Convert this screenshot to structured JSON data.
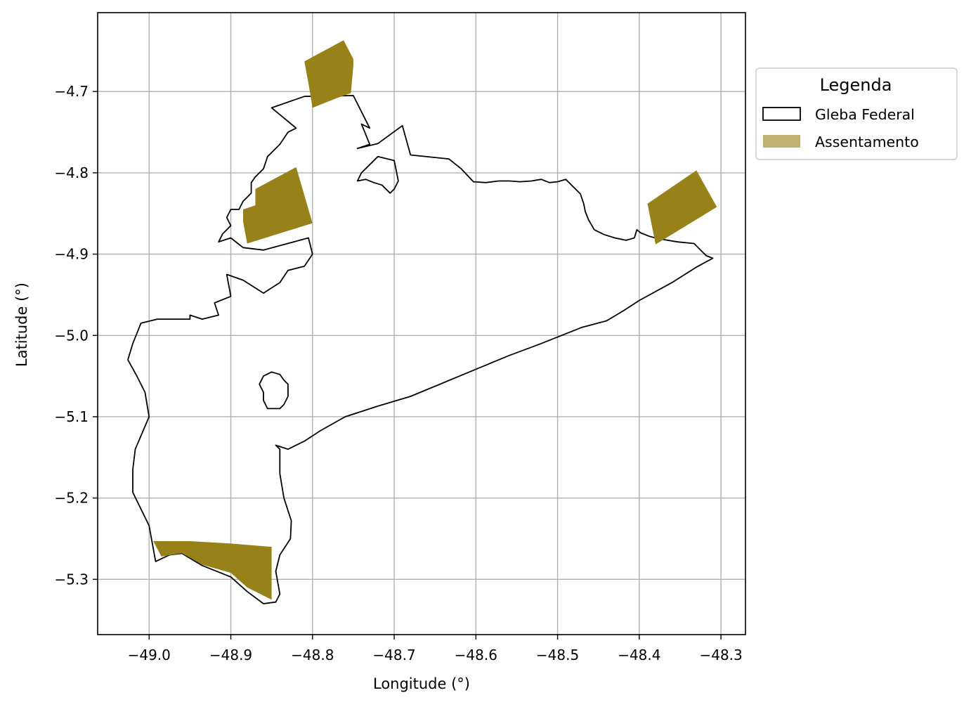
{
  "chart_data": {
    "type": "map",
    "xlabel": "Longitude (°)",
    "ylabel": "Latitude (°)",
    "xlim": [
      -49.063,
      -48.27
    ],
    "ylim": [
      -5.368,
      -4.603
    ],
    "xticks": [
      -49.0,
      -48.9,
      -48.8,
      -48.7,
      -48.6,
      -48.5,
      -48.4,
      -48.3
    ],
    "yticks": [
      -4.7,
      -4.8,
      -4.9,
      -5.0,
      -5.1,
      -5.2,
      -5.3
    ],
    "xtick_labels": [
      "−49.0",
      "−48.9",
      "−48.8",
      "−48.7",
      "−48.6",
      "−48.5",
      "−48.4",
      "−48.3"
    ],
    "ytick_labels": [
      "−4.7",
      "−4.8",
      "−4.9",
      "−5.0",
      "−5.1",
      "−5.2",
      "−5.3"
    ],
    "grid": true,
    "legend_placement": "outside-right",
    "legend": {
      "title": "Legenda",
      "entries": [
        {
          "label": "Gleba Federal",
          "style": "outline",
          "color": "#000000"
        },
        {
          "label": "Assentamento",
          "style": "fill",
          "color": "#c0b274"
        }
      ]
    },
    "colors": {
      "assentamento_fill": "#978118",
      "gleba_edge": "#000000",
      "grid": "#b0b0b0"
    },
    "layers": [
      {
        "name": "Gleba Federal",
        "kind": "outline",
        "polygons": [
          [
            [
              -48.85,
              -4.72
            ],
            [
              -48.81,
              -4.706
            ],
            [
              -48.75,
              -4.705
            ],
            [
              -48.73,
              -4.745
            ],
            [
              -48.74,
              -4.74
            ],
            [
              -48.73,
              -4.765
            ],
            [
              -48.745,
              -4.77
            ],
            [
              -48.72,
              -4.764
            ],
            [
              -48.69,
              -4.742
            ],
            [
              -48.68,
              -4.778
            ],
            [
              -48.633,
              -4.783
            ],
            [
              -48.618,
              -4.795
            ],
            [
              -48.603,
              -4.811
            ],
            [
              -48.588,
              -4.812
            ],
            [
              -48.572,
              -4.81
            ],
            [
              -48.559,
              -4.81
            ],
            [
              -48.546,
              -4.811
            ],
            [
              -48.532,
              -4.81
            ],
            [
              -48.52,
              -4.808
            ],
            [
              -48.51,
              -4.812
            ],
            [
              -48.5,
              -4.811
            ],
            [
              -48.49,
              -4.808
            ],
            [
              -48.483,
              -4.815
            ],
            [
              -48.472,
              -4.826
            ],
            [
              -48.468,
              -4.838
            ],
            [
              -48.466,
              -4.848
            ],
            [
              -48.462,
              -4.858
            ],
            [
              -48.455,
              -4.87
            ],
            [
              -48.443,
              -4.876
            ],
            [
              -48.43,
              -4.88
            ],
            [
              -48.416,
              -4.883
            ],
            [
              -48.406,
              -4.88
            ],
            [
              -48.403,
              -4.87
            ],
            [
              -48.398,
              -4.874
            ],
            [
              -48.388,
              -4.878
            ],
            [
              -48.377,
              -4.881
            ],
            [
              -48.353,
              -4.885
            ],
            [
              -48.333,
              -4.887
            ],
            [
              -48.318,
              -4.902
            ],
            [
              -48.31,
              -4.905
            ],
            [
              -48.33,
              -4.916
            ],
            [
              -48.36,
              -4.935
            ],
            [
              -48.4,
              -4.957
            ],
            [
              -48.42,
              -4.97
            ],
            [
              -48.44,
              -4.982
            ],
            [
              -48.47,
              -4.99
            ],
            [
              -48.52,
              -5.01
            ],
            [
              -48.56,
              -5.025
            ],
            [
              -48.62,
              -5.05
            ],
            [
              -48.68,
              -5.075
            ],
            [
              -48.72,
              -5.087
            ],
            [
              -48.76,
              -5.1
            ],
            [
              -48.79,
              -5.117
            ],
            [
              -48.81,
              -5.13
            ],
            [
              -48.83,
              -5.14
            ],
            [
              -48.845,
              -5.135
            ],
            [
              -48.84,
              -5.14
            ],
            [
              -48.84,
              -5.17
            ],
            [
              -48.835,
              -5.2
            ],
            [
              -48.826,
              -5.228
            ],
            [
              -48.827,
              -5.25
            ],
            [
              -48.84,
              -5.27
            ],
            [
              -48.845,
              -5.29
            ],
            [
              -48.84,
              -5.318
            ],
            [
              -48.845,
              -5.328
            ],
            [
              -48.86,
              -5.33
            ],
            [
              -48.88,
              -5.315
            ],
            [
              -48.9,
              -5.297
            ],
            [
              -48.935,
              -5.283
            ],
            [
              -48.96,
              -5.268
            ],
            [
              -48.975,
              -5.27
            ],
            [
              -48.992,
              -5.278
            ],
            [
              -49.0,
              -5.234
            ],
            [
              -49.02,
              -5.193
            ],
            [
              -49.02,
              -5.165
            ],
            [
              -49.017,
              -5.14
            ],
            [
              -49.0,
              -5.1
            ],
            [
              -49.005,
              -5.07
            ],
            [
              -49.015,
              -5.05
            ],
            [
              -49.026,
              -5.03
            ],
            [
              -49.02,
              -5.01
            ],
            [
              -49.01,
              -4.985
            ],
            [
              -48.99,
              -4.98
            ],
            [
              -48.95,
              -4.98
            ],
            [
              -48.95,
              -4.975
            ],
            [
              -48.935,
              -4.98
            ],
            [
              -48.915,
              -4.975
            ],
            [
              -48.92,
              -4.96
            ],
            [
              -48.9,
              -4.952
            ],
            [
              -48.905,
              -4.925
            ],
            [
              -48.885,
              -4.932
            ],
            [
              -48.86,
              -4.948
            ],
            [
              -48.84,
              -4.935
            ],
            [
              -48.83,
              -4.92
            ],
            [
              -48.81,
              -4.915
            ],
            [
              -48.8,
              -4.9
            ],
            [
              -48.805,
              -4.88
            ],
            [
              -48.86,
              -4.895
            ],
            [
              -48.885,
              -4.892
            ],
            [
              -48.9,
              -4.88
            ],
            [
              -48.915,
              -4.885
            ],
            [
              -48.91,
              -4.875
            ],
            [
              -48.9,
              -4.865
            ],
            [
              -48.905,
              -4.855
            ],
            [
              -48.9,
              -4.845
            ],
            [
              -48.89,
              -4.845
            ],
            [
              -48.885,
              -4.835
            ],
            [
              -48.875,
              -4.825
            ],
            [
              -48.875,
              -4.812
            ],
            [
              -48.87,
              -4.805
            ],
            [
              -48.86,
              -4.795
            ],
            [
              -48.855,
              -4.78
            ],
            [
              -48.84,
              -4.765
            ],
            [
              -48.83,
              -4.75
            ],
            [
              -48.82,
              -4.745
            ],
            [
              -48.85,
              -4.72
            ]
          ],
          [
            [
              -48.72,
              -4.78
            ],
            [
              -48.7,
              -4.785
            ],
            [
              -48.695,
              -4.81
            ],
            [
              -48.7,
              -4.82
            ],
            [
              -48.705,
              -4.825
            ],
            [
              -48.715,
              -4.815
            ],
            [
              -48.725,
              -4.812
            ],
            [
              -48.735,
              -4.808
            ],
            [
              -48.745,
              -4.81
            ],
            [
              -48.74,
              -4.8
            ],
            [
              -48.73,
              -4.79
            ],
            [
              -48.72,
              -4.78
            ]
          ],
          [
            [
              -48.86,
              -5.05
            ],
            [
              -48.85,
              -5.045
            ],
            [
              -48.84,
              -5.048
            ],
            [
              -48.835,
              -5.055
            ],
            [
              -48.83,
              -5.06
            ],
            [
              -48.83,
              -5.075
            ],
            [
              -48.835,
              -5.085
            ],
            [
              -48.84,
              -5.09
            ],
            [
              -48.855,
              -5.09
            ],
            [
              -48.86,
              -5.08
            ],
            [
              -48.86,
              -5.07
            ],
            [
              -48.865,
              -5.06
            ],
            [
              -48.86,
              -5.05
            ]
          ]
        ]
      },
      {
        "name": "Assentamento",
        "kind": "fill",
        "polygons": [
          [
            [
              -48.81,
              -4.663
            ],
            [
              -48.805,
              -4.69
            ],
            [
              -48.8,
              -4.72
            ],
            [
              -48.77,
              -4.708
            ],
            [
              -48.753,
              -4.702
            ],
            [
              -48.75,
              -4.668
            ],
            [
              -48.75,
              -4.66
            ],
            [
              -48.762,
              -4.637
            ],
            [
              -48.81,
              -4.663
            ]
          ],
          [
            [
              -48.8,
              -4.862
            ],
            [
              -48.88,
              -4.887
            ],
            [
              -48.885,
              -4.86
            ],
            [
              -48.885,
              -4.845
            ],
            [
              -48.87,
              -4.84
            ],
            [
              -48.87,
              -4.82
            ],
            [
              -48.82,
              -4.793
            ],
            [
              -48.8,
              -4.862
            ]
          ],
          [
            [
              -48.39,
              -4.838
            ],
            [
              -48.33,
              -4.797
            ],
            [
              -48.305,
              -4.842
            ],
            [
              -48.38,
              -4.888
            ],
            [
              -48.39,
              -4.838
            ]
          ],
          [
            [
              -48.995,
              -5.253
            ],
            [
              -48.95,
              -5.253
            ],
            [
              -48.9,
              -5.256
            ],
            [
              -48.85,
              -5.26
            ],
            [
              -48.85,
              -5.325
            ],
            [
              -48.86,
              -5.32
            ],
            [
              -48.88,
              -5.31
            ],
            [
              -48.9,
              -5.292
            ],
            [
              -48.935,
              -5.282
            ],
            [
              -48.96,
              -5.268
            ],
            [
              -48.985,
              -5.272
            ],
            [
              -48.995,
              -5.253
            ]
          ]
        ]
      }
    ]
  }
}
